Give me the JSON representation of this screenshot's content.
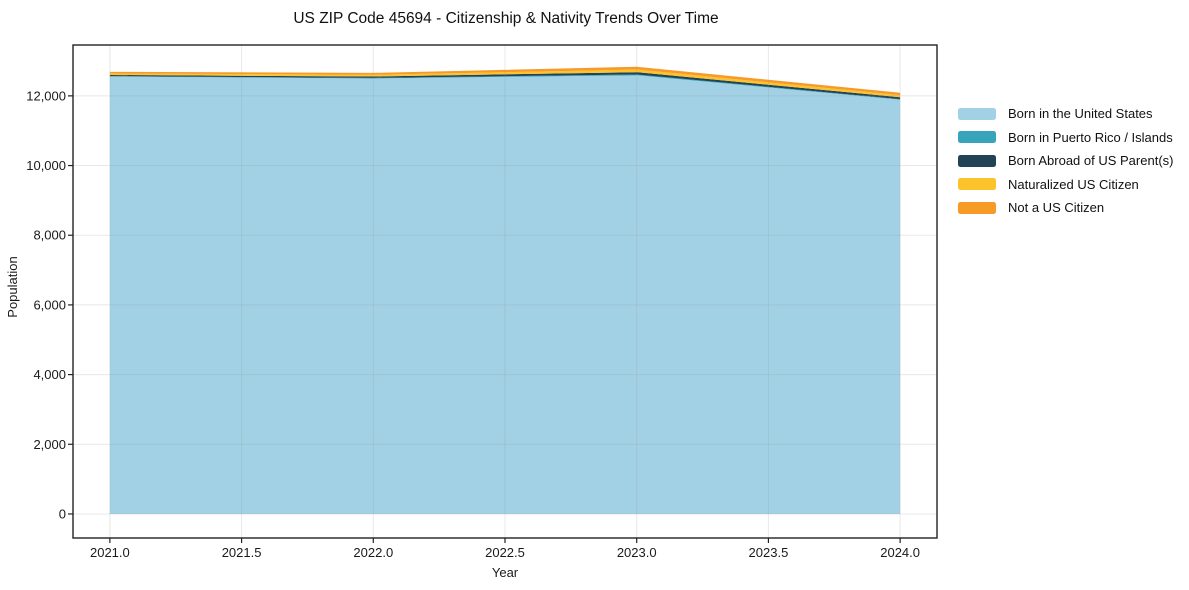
{
  "chart_data": {
    "type": "area",
    "stacked": true,
    "title": "US ZIP Code 45694 - Citizenship & Nativity Trends Over Time",
    "xlabel": "Year",
    "ylabel": "Population",
    "x": [
      2021,
      2022,
      2023,
      2024
    ],
    "series": [
      {
        "name": "Born in the United States",
        "color": "#a2d1e5",
        "values": [
          12555,
          12500,
          12590,
          11890
        ]
      },
      {
        "name": "Born in Puerto Rico / Islands",
        "color": "#38a4bc",
        "values": [
          10,
          15,
          25,
          15
        ]
      },
      {
        "name": "Born Abroad of US Parent(s)",
        "color": "#204355",
        "values": [
          35,
          40,
          65,
          55
        ]
      },
      {
        "name": "Naturalized US Citizen",
        "color": "#fcc32d",
        "values": [
          45,
          50,
          75,
          60
        ]
      },
      {
        "name": "Not a US Citizen",
        "color": "#f79a28",
        "values": [
          45,
          55,
          80,
          70
        ]
      }
    ],
    "x_ticks": [
      "2021.0",
      "2021.5",
      "2022.0",
      "2022.5",
      "2023.0",
      "2023.5",
      "2024.0"
    ],
    "x_tick_values": [
      2021,
      2021.5,
      2022,
      2022.5,
      2023,
      2023.5,
      2024
    ],
    "y_ticks": [
      "0",
      "2,000",
      "4,000",
      "6,000",
      "8,000",
      "10,000",
      "12,000"
    ],
    "y_tick_values": [
      0,
      2000,
      4000,
      6000,
      8000,
      10000,
      12000
    ],
    "xlim": [
      2020.86,
      2024.14
    ],
    "ylim": [
      -690,
      13460
    ],
    "grid": true,
    "legend_position": "right-outside"
  }
}
